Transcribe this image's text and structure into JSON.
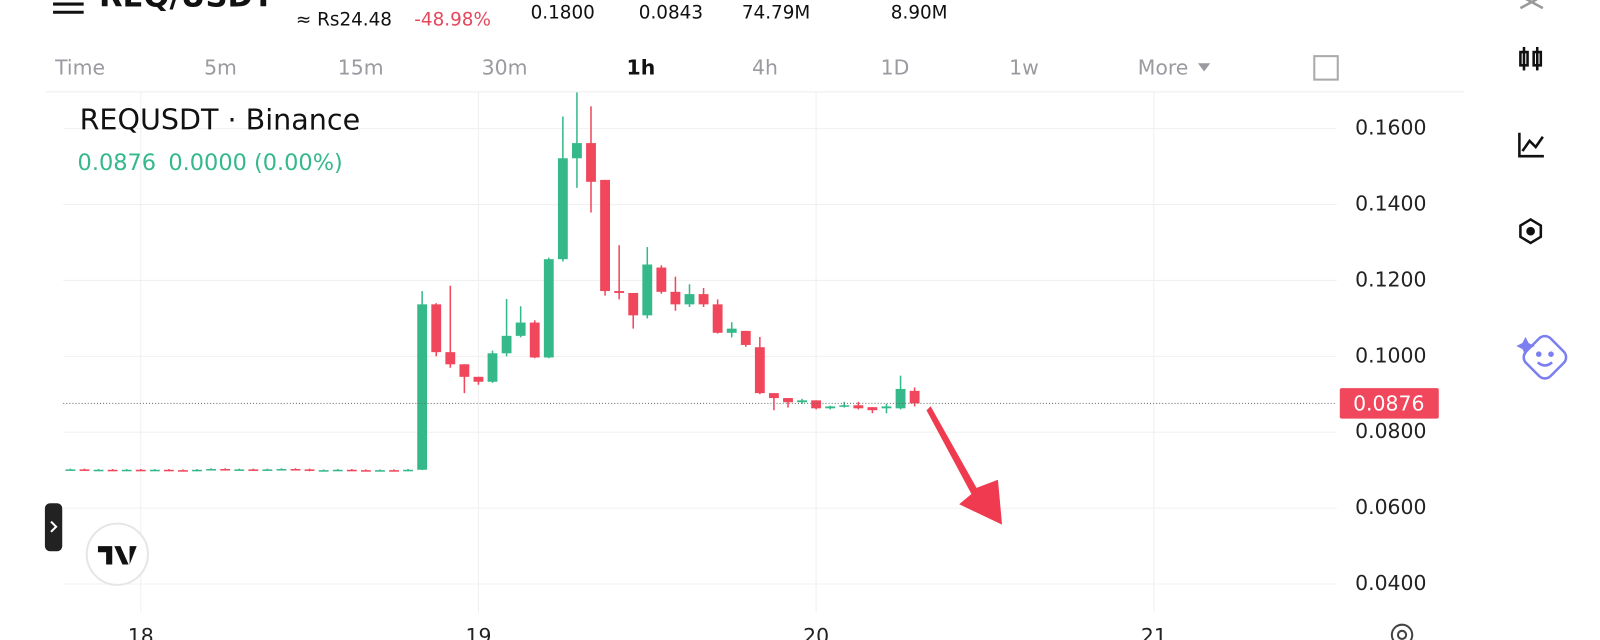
{
  "header": {
    "title": "REQ/USDT",
    "fiat_price": "≈ Rs24.48",
    "change": "-48.98%",
    "stats": [
      "0.1800",
      "0.0843",
      "74.79M",
      "8.90M"
    ]
  },
  "timeframes": [
    "Time",
    "5m",
    "15m",
    "30m",
    "1h",
    "4h",
    "1D",
    "1w",
    "More"
  ],
  "chart_data": {
    "type": "candlestick",
    "title": "REQUSDT · Binance",
    "last_price": 0.0876,
    "change_text": "0.0000 (0.00%)",
    "up_color": "#35b98a",
    "down_color": "#f0475c",
    "grid": true,
    "x": [
      -5,
      -4,
      -3,
      -2,
      -1,
      0,
      1,
      2,
      3,
      4,
      5,
      6,
      7,
      8,
      9,
      10,
      11,
      12,
      13,
      14,
      15,
      16,
      17,
      18,
      19,
      20,
      21,
      22,
      23,
      24,
      25,
      26,
      27,
      28,
      29,
      30,
      31,
      32,
      33,
      34,
      35,
      36,
      37,
      38,
      39,
      40,
      41,
      42,
      43,
      44,
      45,
      46,
      47,
      48,
      49,
      50,
      51,
      52,
      53,
      54,
      55
    ],
    "open": [
      0.0701,
      0.0702,
      0.07,
      0.0701,
      0.07,
      0.0701,
      0.07,
      0.0701,
      0.07,
      0.0699,
      0.0701,
      0.0703,
      0.0701,
      0.0702,
      0.0701,
      0.0702,
      0.0703,
      0.0702,
      0.0699,
      0.07,
      0.0701,
      0.07,
      0.0699,
      0.07,
      0.0699,
      0.0701,
      0.1137,
      0.1011,
      0.0979,
      0.0946,
      0.0933,
      0.1008,
      0.1054,
      0.1089,
      0.0997,
      0.1256,
      0.1522,
      0.1562,
      0.1465,
      0.1172,
      0.1167,
      0.1108,
      0.1234,
      0.117,
      0.1137,
      0.1164,
      0.1137,
      0.1062,
      0.1067,
      0.1024,
      0.0903,
      0.089,
      0.0879,
      0.0884,
      0.0863,
      0.0868,
      0.0871,
      0.0866,
      0.0863,
      0.0863,
      0.0909
    ],
    "high": [
      0.0704,
      0.0704,
      0.0703,
      0.0703,
      0.0703,
      0.0703,
      0.0703,
      0.0703,
      0.0702,
      0.0703,
      0.0705,
      0.0705,
      0.0704,
      0.0704,
      0.0704,
      0.0705,
      0.0705,
      0.0704,
      0.0702,
      0.0703,
      0.0703,
      0.0702,
      0.0702,
      0.0702,
      0.0703,
      0.1172,
      0.114,
      0.1186,
      0.0979,
      0.0946,
      0.1015,
      0.1151,
      0.1132,
      0.1095,
      0.126,
      0.1632,
      0.1697,
      0.1659,
      0.1465,
      0.1293,
      0.1167,
      0.1288,
      0.124,
      0.121,
      0.119,
      0.118,
      0.115,
      0.109,
      0.1067,
      0.1051,
      0.0903,
      0.089,
      0.0888,
      0.0884,
      0.087,
      0.088,
      0.088,
      0.0866,
      0.0875,
      0.0949,
      0.0918
    ],
    "low": [
      0.0699,
      0.0698,
      0.0698,
      0.0698,
      0.0698,
      0.0698,
      0.0698,
      0.0698,
      0.0697,
      0.0697,
      0.0699,
      0.0699,
      0.0699,
      0.0699,
      0.0699,
      0.07,
      0.07,
      0.0697,
      0.0697,
      0.0698,
      0.0698,
      0.0697,
      0.0697,
      0.0697,
      0.0697,
      0.07,
      0.1,
      0.097,
      0.0903,
      0.0925,
      0.093,
      0.1,
      0.105,
      0.0995,
      0.0995,
      0.125,
      0.1444,
      0.1379,
      0.116,
      0.115,
      0.1073,
      0.11,
      0.1165,
      0.112,
      0.113,
      0.113,
      0.106,
      0.105,
      0.1025,
      0.09,
      0.0858,
      0.0865,
      0.0875,
      0.086,
      0.086,
      0.0865,
      0.086,
      0.085,
      0.085,
      0.086,
      0.0868
    ],
    "close": [
      0.0702,
      0.07,
      0.0701,
      0.07,
      0.0701,
      0.07,
      0.0701,
      0.07,
      0.0699,
      0.0701,
      0.0703,
      0.0701,
      0.0702,
      0.0701,
      0.0702,
      0.0703,
      0.0702,
      0.0699,
      0.07,
      0.0701,
      0.07,
      0.0699,
      0.07,
      0.0699,
      0.0701,
      0.1137,
      0.1011,
      0.0979,
      0.0946,
      0.0933,
      0.1008,
      0.1054,
      0.1089,
      0.0997,
      0.1256,
      0.1522,
      0.1562,
      0.146,
      0.1172,
      0.1167,
      0.1108,
      0.1242,
      0.117,
      0.1137,
      0.1164,
      0.1137,
      0.1062,
      0.1073,
      0.103,
      0.0903,
      0.089,
      0.0879,
      0.0884,
      0.0863,
      0.0868,
      0.0871,
      0.0863,
      0.0858,
      0.0868,
      0.0914,
      0.0876
    ],
    "xlim": [
      -6.74,
      85
    ],
    "xticks": [
      {
        "value": 0,
        "label": "18"
      },
      {
        "value": 24,
        "label": "19"
      },
      {
        "value": 48,
        "label": "20"
      },
      {
        "value": 72,
        "label": "21"
      }
    ],
    "ylim": [
      0.0325,
      0.1697
    ],
    "yticks": [
      {
        "value": 0.16,
        "label": "0.1600"
      },
      {
        "value": 0.14,
        "label": "0.1400"
      },
      {
        "value": 0.12,
        "label": "0.1200"
      },
      {
        "value": 0.1,
        "label": "0.1000"
      },
      {
        "value": 0.08,
        "label": "0.0800"
      },
      {
        "value": 0.06,
        "label": "0.0600"
      },
      {
        "value": 0.04,
        "label": "0.0400"
      }
    ]
  }
}
